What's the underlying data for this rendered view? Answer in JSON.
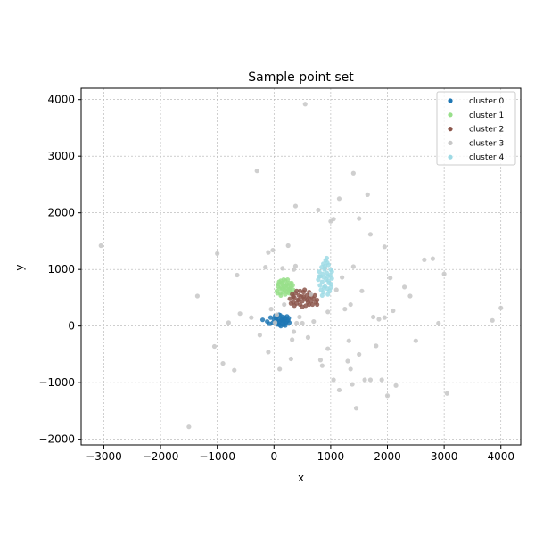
{
  "chart_data": {
    "type": "scatter",
    "title": "Sample point set",
    "xlabel": "x",
    "ylabel": "y",
    "xlim": [
      -3400,
      4350
    ],
    "ylim": [
      -2100,
      4200
    ],
    "xticks": [
      -3000,
      -2000,
      -1000,
      0,
      1000,
      2000,
      3000,
      4000
    ],
    "yticks": [
      -2000,
      -1000,
      0,
      1000,
      2000,
      3000,
      4000
    ],
    "xtick_labels": [
      "−3000",
      "−2000",
      "−1000",
      "0",
      "1000",
      "2000",
      "3000",
      "4000"
    ],
    "ytick_labels": [
      "−2000",
      "−1000",
      "0",
      "1000",
      "2000",
      "3000",
      "4000"
    ],
    "grid": true,
    "legend_position": "top-right",
    "series": [
      {
        "name": "cluster 0",
        "color": "#1f77b4",
        "points": [
          [
            -200,
            110
          ],
          [
            -120,
            80
          ],
          [
            -60,
            150
          ],
          [
            -20,
            60
          ],
          [
            0,
            120
          ],
          [
            20,
            180
          ],
          [
            40,
            90
          ],
          [
            60,
            30
          ],
          [
            80,
            140
          ],
          [
            100,
            70
          ],
          [
            110,
            190
          ],
          [
            130,
            110
          ],
          [
            150,
            40
          ],
          [
            160,
            160
          ],
          [
            180,
            90
          ],
          [
            200,
            130
          ],
          [
            210,
            50
          ],
          [
            230,
            170
          ],
          [
            250,
            100
          ],
          [
            270,
            60
          ],
          [
            120,
            0
          ],
          [
            90,
            200
          ],
          [
            50,
            100
          ],
          [
            140,
            120
          ],
          [
            170,
            20
          ],
          [
            -80,
            40
          ],
          [
            30,
            140
          ],
          [
            190,
            150
          ],
          [
            220,
            80
          ],
          [
            260,
            140
          ],
          [
            60,
            170
          ],
          [
            100,
            20
          ],
          [
            150,
            90
          ],
          [
            80,
            60
          ],
          [
            200,
            10
          ]
        ]
      },
      {
        "name": "cluster 1",
        "color": "#98df8a",
        "points": [
          [
            50,
            620
          ],
          [
            70,
            700
          ],
          [
            90,
            780
          ],
          [
            110,
            580
          ],
          [
            130,
            680
          ],
          [
            150,
            740
          ],
          [
            170,
            820
          ],
          [
            190,
            640
          ],
          [
            210,
            720
          ],
          [
            230,
            600
          ],
          [
            250,
            700
          ],
          [
            270,
            760
          ],
          [
            290,
            660
          ],
          [
            310,
            580
          ],
          [
            330,
            720
          ],
          [
            120,
            540
          ],
          [
            160,
            600
          ],
          [
            200,
            560
          ],
          [
            240,
            820
          ],
          [
            280,
            620
          ],
          [
            100,
            660
          ],
          [
            140,
            760
          ],
          [
            180,
            700
          ],
          [
            220,
            660
          ],
          [
            260,
            640
          ],
          [
            300,
            700
          ],
          [
            60,
            580
          ],
          [
            340,
            640
          ],
          [
            80,
            740
          ],
          [
            200,
            800
          ],
          [
            150,
            660
          ],
          [
            230,
            740
          ],
          [
            270,
            580
          ],
          [
            120,
            800
          ],
          [
            310,
            760
          ]
        ]
      },
      {
        "name": "cluster 2",
        "color": "#8c564b",
        "points": [
          [
            280,
            480
          ],
          [
            320,
            560
          ],
          [
            340,
            420
          ],
          [
            360,
            500
          ],
          [
            380,
            580
          ],
          [
            400,
            400
          ],
          [
            420,
            460
          ],
          [
            440,
            540
          ],
          [
            460,
            380
          ],
          [
            480,
            520
          ],
          [
            500,
            440
          ],
          [
            520,
            600
          ],
          [
            540,
            480
          ],
          [
            560,
            360
          ],
          [
            580,
            540
          ],
          [
            600,
            420
          ],
          [
            620,
            500
          ],
          [
            640,
            560
          ],
          [
            660,
            440
          ],
          [
            680,
            380
          ],
          [
            700,
            480
          ],
          [
            720,
            540
          ],
          [
            740,
            420
          ],
          [
            760,
            460
          ],
          [
            400,
            620
          ],
          [
            460,
            620
          ],
          [
            540,
            640
          ],
          [
            620,
            600
          ],
          [
            300,
            400
          ],
          [
            360,
            360
          ],
          [
            500,
            340
          ],
          [
            580,
            460
          ],
          [
            660,
            520
          ],
          [
            440,
            460
          ],
          [
            520,
            520
          ],
          [
            620,
            380
          ],
          [
            340,
            520
          ],
          [
            760,
            380
          ]
        ]
      },
      {
        "name": "cluster 3",
        "color": "#c7c7c7",
        "points": [
          [
            -3050,
            1420
          ],
          [
            -1500,
            -1780
          ],
          [
            -1350,
            530
          ],
          [
            -1000,
            1280
          ],
          [
            -1050,
            -360
          ],
          [
            -900,
            -660
          ],
          [
            -800,
            60
          ],
          [
            -700,
            -780
          ],
          [
            -650,
            900
          ],
          [
            -600,
            220
          ],
          [
            -400,
            150
          ],
          [
            -300,
            2740
          ],
          [
            -250,
            -160
          ],
          [
            -150,
            1040
          ],
          [
            -100,
            1300
          ],
          [
            -100,
            -460
          ],
          [
            -50,
            300
          ],
          [
            -20,
            1340
          ],
          [
            20,
            60
          ],
          [
            50,
            200
          ],
          [
            100,
            -760
          ],
          [
            150,
            1020
          ],
          [
            180,
            380
          ],
          [
            250,
            1420
          ],
          [
            300,
            -580
          ],
          [
            320,
            -240
          ],
          [
            350,
            -100
          ],
          [
            380,
            2120
          ],
          [
            380,
            1060
          ],
          [
            400,
            50
          ],
          [
            450,
            160
          ],
          [
            500,
            50
          ],
          [
            550,
            3920
          ],
          [
            600,
            -200
          ],
          [
            650,
            560
          ],
          [
            700,
            80
          ],
          [
            780,
            2050
          ],
          [
            820,
            -600
          ],
          [
            850,
            -700
          ],
          [
            900,
            1020
          ],
          [
            950,
            -400
          ],
          [
            950,
            250
          ],
          [
            1050,
            1890
          ],
          [
            1050,
            -950
          ],
          [
            1100,
            640
          ],
          [
            1150,
            2250
          ],
          [
            1150,
            -1130
          ],
          [
            1200,
            860
          ],
          [
            1250,
            300
          ],
          [
            1300,
            -620
          ],
          [
            1320,
            -260
          ],
          [
            1350,
            -760
          ],
          [
            1380,
            -1030
          ],
          [
            1400,
            1050
          ],
          [
            1400,
            2700
          ],
          [
            1450,
            -1450
          ],
          [
            1500,
            1900
          ],
          [
            1500,
            -500
          ],
          [
            1550,
            620
          ],
          [
            1600,
            -950
          ],
          [
            1650,
            2320
          ],
          [
            1700,
            1620
          ],
          [
            1750,
            160
          ],
          [
            1800,
            -350
          ],
          [
            1850,
            120
          ],
          [
            1900,
            -950
          ],
          [
            1950,
            1400
          ],
          [
            2000,
            -1230
          ],
          [
            2050,
            850
          ],
          [
            2100,
            270
          ],
          [
            2150,
            -1050
          ],
          [
            2300,
            690
          ],
          [
            2400,
            530
          ],
          [
            2500,
            -260
          ],
          [
            2650,
            1170
          ],
          [
            2800,
            1190
          ],
          [
            2900,
            50
          ],
          [
            3000,
            920
          ],
          [
            3050,
            -1190
          ],
          [
            3850,
            100
          ],
          [
            4000,
            320
          ],
          [
            1350,
            380
          ],
          [
            1000,
            1850
          ],
          [
            1700,
            -950
          ],
          [
            350,
            1000
          ],
          [
            1950,
            150
          ]
        ]
      },
      {
        "name": "cluster 4",
        "color": "#9edae5",
        "points": [
          [
            780,
            820
          ],
          [
            800,
            960
          ],
          [
            810,
            720
          ],
          [
            820,
            880
          ],
          [
            830,
            640
          ],
          [
            840,
            1040
          ],
          [
            850,
            780
          ],
          [
            860,
            920
          ],
          [
            870,
            600
          ],
          [
            880,
            860
          ],
          [
            890,
            1000
          ],
          [
            900,
            700
          ],
          [
            910,
            1160
          ],
          [
            920,
            820
          ],
          [
            930,
            940
          ],
          [
            940,
            660
          ],
          [
            950,
            880
          ],
          [
            960,
            1080
          ],
          [
            970,
            760
          ],
          [
            980,
            620
          ],
          [
            990,
            900
          ],
          [
            1000,
            1000
          ],
          [
            1010,
            740
          ],
          [
            1020,
            840
          ],
          [
            870,
            1100
          ],
          [
            930,
            1200
          ],
          [
            850,
            540
          ],
          [
            950,
            560
          ],
          [
            1000,
            680
          ],
          [
            800,
            880
          ],
          [
            900,
            1060
          ],
          [
            960,
            800
          ],
          [
            1020,
            960
          ],
          [
            880,
            680
          ],
          [
            940,
            1120
          ]
        ]
      }
    ]
  }
}
